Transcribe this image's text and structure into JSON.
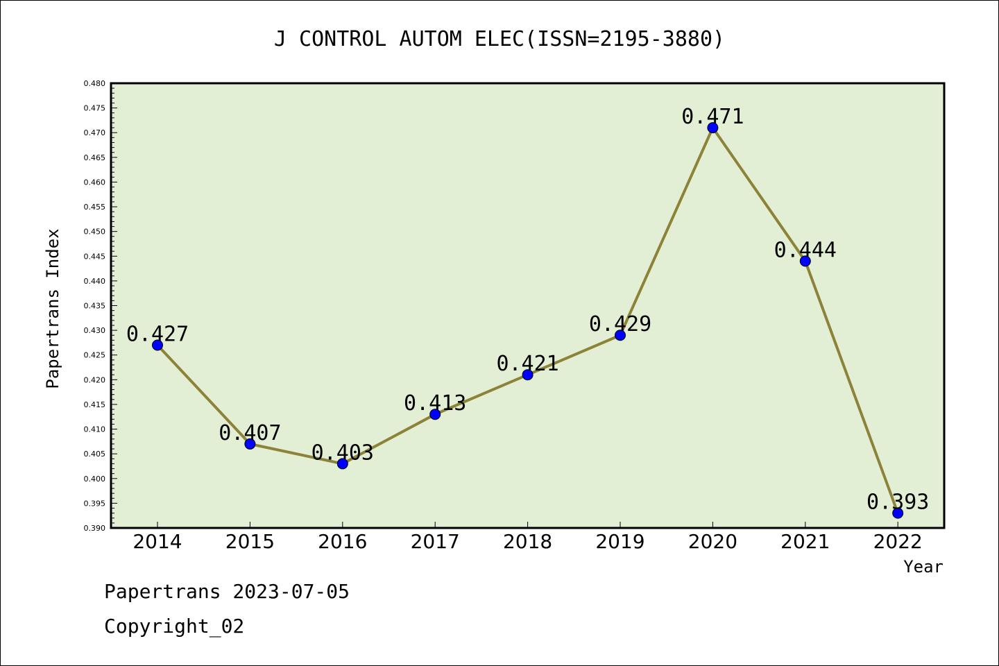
{
  "chart_data": {
    "type": "line",
    "title": "J CONTROL AUTOM ELEC(ISSN=2195-3880)",
    "xlabel": "Year",
    "ylabel": "Papertrans Index",
    "categories": [
      "2014",
      "2015",
      "2016",
      "2017",
      "2018",
      "2019",
      "2020",
      "2021",
      "2022"
    ],
    "values": [
      0.427,
      0.407,
      0.403,
      0.413,
      0.421,
      0.429,
      0.471,
      0.444,
      0.393
    ],
    "data_labels": [
      "0.427",
      "0.407",
      "0.403",
      "0.413",
      "0.421",
      "0.429",
      "0.471",
      "0.444",
      "0.393"
    ],
    "ylim": [
      0.39,
      0.48
    ],
    "ytick_labels": [
      "0.390",
      "0.395",
      "0.400",
      "0.405",
      "0.410",
      "0.415",
      "0.420",
      "0.425",
      "0.430",
      "0.435",
      "0.440",
      "0.445",
      "0.450",
      "0.455",
      "0.460",
      "0.465",
      "0.470",
      "0.475",
      "0.480"
    ],
    "ytick_values": [
      0.39,
      0.395,
      0.4,
      0.405,
      0.41,
      0.415,
      0.42,
      0.425,
      0.43,
      0.435,
      0.44,
      0.445,
      0.45,
      0.455,
      0.46,
      0.465,
      0.47,
      0.475,
      0.48
    ],
    "grid": false,
    "colors": {
      "plot_background": "#e2efd5",
      "line": "#8c8338",
      "marker": "#0000ff"
    }
  },
  "footer": {
    "line1": "Papertrans 2023-07-05",
    "line2": "Copyright_02"
  }
}
